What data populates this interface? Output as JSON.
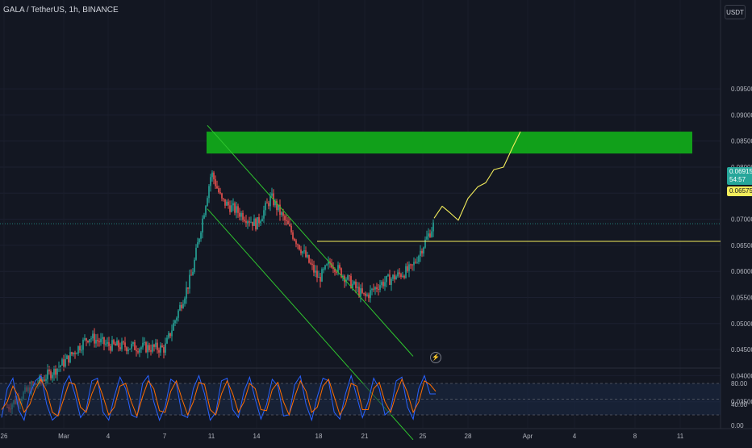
{
  "header": {
    "symbol": "GALA / TetherUS, 1h, BINANCE"
  },
  "currency_button": "USDT",
  "last_price": {
    "value": "0.06915",
    "countdown": "54:57"
  },
  "horizontal_line_price": "0.06575",
  "colors": {
    "background": "#131722",
    "up": "#26a69a",
    "down": "#ef5350",
    "zone": "#11a01a",
    "channel": "#2fc52f",
    "projection": "#f4ee5c",
    "rsi_k": "#2962ff",
    "rsi_d": "#ff6d00"
  },
  "chart_data": {
    "type": "candlestick",
    "title": "",
    "y_axis": {
      "ticks": [
        "0.09500",
        "0.09000",
        "0.08500",
        "0.08000",
        "0.07500",
        "0.07000",
        "0.06500",
        "0.06000",
        "0.05500",
        "0.05000",
        "0.04500",
        "0.04000",
        "0.03500"
      ],
      "range": [
        0.0322,
        0.0995
      ],
      "position": "right"
    },
    "x_axis": {
      "ticks": [
        "26",
        "Mar",
        "4",
        "7",
        "11",
        "14",
        "18",
        "21",
        "25",
        "28",
        "Apr",
        "4",
        "8",
        "11"
      ]
    },
    "price_anchors": [
      [
        "26",
        0.0335
      ],
      [
        "Mar",
        0.0425
      ],
      [
        "Mar",
        0.0475
      ],
      [
        "4",
        0.0458
      ],
      [
        "7",
        0.0452
      ],
      [
        "7",
        0.0595
      ],
      [
        "11",
        0.079
      ],
      [
        "11",
        0.0735
      ],
      [
        "14",
        0.069
      ],
      [
        "14",
        0.0742
      ],
      [
        "18",
        0.0585
      ],
      [
        "18",
        0.0618
      ],
      [
        "21",
        0.055
      ],
      [
        "21",
        0.0575
      ],
      [
        "25",
        0.0605
      ],
      [
        "25",
        0.06915
      ]
    ],
    "green_zone": {
      "from": "11",
      "to": "beyond 11 Apr",
      "low": 0.0826,
      "high": 0.0868
    },
    "channel": {
      "upper": [
        [
          "11",
          0.088
        ],
        [
          "21",
          0.055
        ]
      ],
      "lower": [
        [
          "11",
          0.072
        ],
        [
          "21",
          0.039
        ]
      ]
    },
    "horizontal_line": {
      "start": "18",
      "value": 0.06575
    },
    "projection_path": [
      [
        "25",
        0.07
      ],
      [
        "28",
        0.07
      ],
      [
        "28",
        0.077
      ],
      [
        "Apr",
        0.08
      ],
      [
        "Apr",
        0.087
      ]
    ],
    "rsi_panel": {
      "ticks": [
        "80.00",
        "40.00",
        "0.00"
      ],
      "levels": [
        80,
        50,
        20
      ],
      "band": [
        20,
        80
      ],
      "series": [
        {
          "name": "",
          "color_key": "rsi_k",
          "values": [
            15,
            70,
            90,
            30,
            10,
            60,
            85,
            95,
            40,
            10,
            20,
            75,
            95,
            60,
            15,
            30,
            85,
            90,
            25,
            10,
            55,
            92,
            70,
            20,
            15,
            80,
            95,
            45,
            10,
            35,
            88,
            80,
            20,
            15,
            70,
            95,
            60,
            10,
            25,
            85,
            90,
            30,
            15,
            65,
            92,
            50,
            12,
            40,
            88,
            75,
            18,
            20,
            78,
            94,
            40,
            10,
            55,
            90,
            85,
            25,
            12,
            60,
            95,
            55,
            15,
            45,
            90,
            70,
            20,
            30,
            85,
            92,
            35,
            12,
            70,
            95,
            60,
            60
          ]
        },
        {
          "name": "",
          "color_key": "rsi_d",
          "values": [
            30,
            45,
            75,
            55,
            25,
            40,
            70,
            88,
            65,
            25,
            18,
            50,
            82,
            78,
            35,
            25,
            60,
            85,
            55,
            20,
            35,
            75,
            80,
            45,
            18,
            55,
            85,
            70,
            28,
            25,
            65,
            85,
            50,
            20,
            45,
            82,
            78,
            30,
            20,
            60,
            85,
            60,
            25,
            45,
            80,
            70,
            30,
            28,
            68,
            82,
            45,
            20,
            55,
            85,
            65,
            25,
            35,
            75,
            88,
            55,
            20,
            40,
            80,
            75,
            30,
            30,
            70,
            82,
            45,
            25,
            60,
            88,
            62,
            25,
            45,
            85,
            78,
            65
          ]
        }
      ]
    }
  }
}
